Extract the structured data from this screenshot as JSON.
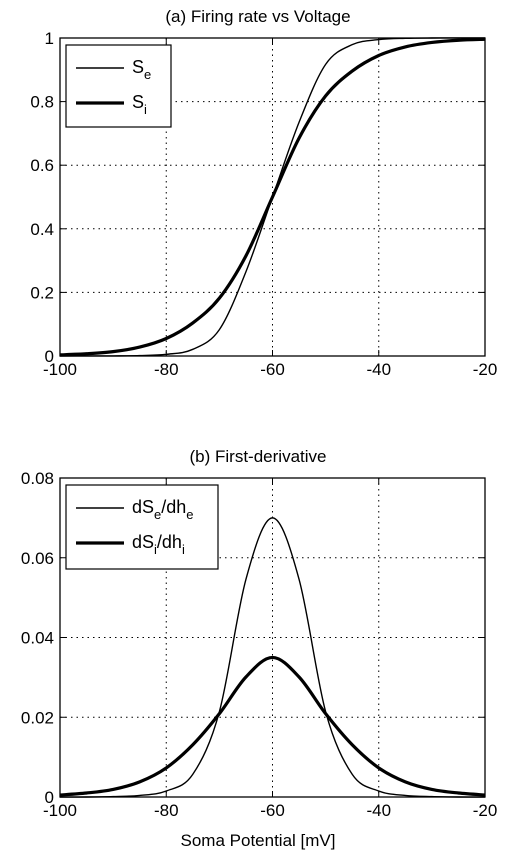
{
  "chart_data": [
    {
      "type": "line",
      "title": "(a) Firing rate vs Voltage",
      "xlabel": "",
      "ylabel": "",
      "xlim": [
        -100,
        -20
      ],
      "ylim": [
        0,
        1
      ],
      "xticks": [
        -100,
        -80,
        -60,
        -40,
        -20
      ],
      "yticks": [
        0,
        0.2,
        0.4,
        0.6,
        0.8,
        1
      ],
      "xtick_labels": [
        "-100",
        "-80",
        "-60",
        "-40",
        "-20"
      ],
      "ytick_labels": [
        "0",
        "0.2",
        "0.4",
        "0.6",
        "0.8",
        "1"
      ],
      "grid": true,
      "legend_position": "top-left",
      "x": [
        -100,
        -95,
        -90,
        -85,
        -80,
        -75,
        -70,
        -65,
        -60,
        -55,
        -50,
        -45,
        -40,
        -35,
        -30,
        -25,
        -20
      ],
      "series": [
        {
          "name": "S_e",
          "legend_main": "S",
          "legend_sub": "e",
          "weight": "thin",
          "values": [
            0.0,
            0.0001,
            0.0003,
            0.0013,
            0.0053,
            0.021,
            0.083,
            0.265,
            0.5,
            0.735,
            0.917,
            0.979,
            0.995,
            0.999,
            1.0,
            1.0,
            1.0
          ]
        },
        {
          "name": "S_i",
          "legend_main": "S",
          "legend_sub": "i",
          "weight": "thick",
          "values": [
            0.0036,
            0.0071,
            0.0138,
            0.028,
            0.055,
            0.104,
            0.182,
            0.315,
            0.5,
            0.685,
            0.818,
            0.896,
            0.945,
            0.972,
            0.986,
            0.993,
            0.996
          ]
        }
      ]
    },
    {
      "type": "line",
      "title": "(b) First-derivative",
      "xlabel": "Soma Potential [mV]",
      "ylabel": "",
      "xlim": [
        -100,
        -20
      ],
      "ylim": [
        0,
        0.08
      ],
      "xticks": [
        -100,
        -80,
        -60,
        -40,
        -20
      ],
      "yticks": [
        0,
        0.02,
        0.04,
        0.06,
        0.08
      ],
      "xtick_labels": [
        "-100",
        "-80",
        "-60",
        "-40",
        "-20"
      ],
      "ytick_labels": [
        "0",
        "0.02",
        "0.04",
        "0.06",
        "0.08"
      ],
      "grid": true,
      "legend_position": "top-left",
      "x": [
        -100,
        -95,
        -90,
        -85,
        -80,
        -75,
        -70,
        -65,
        -60,
        -55,
        -50,
        -45,
        -40,
        -35,
        -30,
        -25,
        -20
      ],
      "series": [
        {
          "name": "dS_e/dh_e",
          "legend_parts": [
            [
              "t",
              "dS"
            ],
            [
              "s",
              "e"
            ],
            [
              "t",
              "/dh"
            ],
            [
              "s",
              "e"
            ]
          ],
          "weight": "thin",
          "values": [
            0.0,
            0.0,
            0.0001,
            0.0004,
            0.0015,
            0.0057,
            0.0214,
            0.0546,
            0.07,
            0.0546,
            0.0214,
            0.0057,
            0.0015,
            0.0004,
            0.0001,
            0.0,
            0.0
          ]
        },
        {
          "name": "dS_i/dh_i",
          "legend_parts": [
            [
              "t",
              "dS"
            ],
            [
              "s",
              "i"
            ],
            [
              "t",
              "/dh"
            ],
            [
              "s",
              "i"
            ]
          ],
          "weight": "thick",
          "values": [
            0.0005,
            0.001,
            0.0019,
            0.0038,
            0.0073,
            0.0131,
            0.0209,
            0.0301,
            0.035,
            0.0301,
            0.0209,
            0.0131,
            0.0073,
            0.0038,
            0.0019,
            0.001,
            0.0005
          ]
        }
      ]
    }
  ]
}
